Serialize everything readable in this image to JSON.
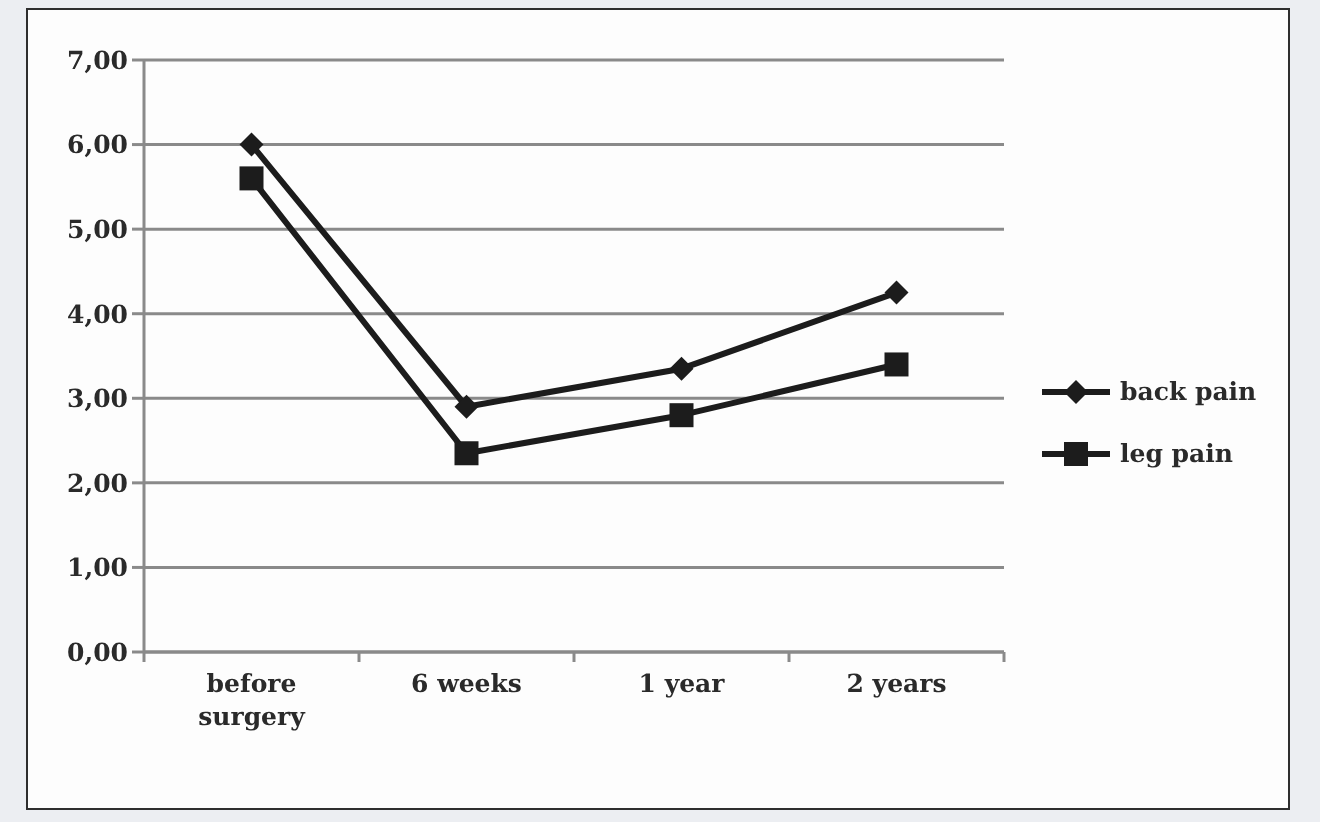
{
  "chart_data": {
    "type": "line",
    "categories": [
      "before surgery",
      "6 weeks",
      "1 year",
      "2 years"
    ],
    "series": [
      {
        "name": "back pain",
        "color": "#1c1c1c",
        "values": [
          6.0,
          2.9,
          3.35,
          4.25
        ],
        "marker": "diamond"
      },
      {
        "name": "leg pain",
        "color": "#1c1c1c",
        "values": [
          5.6,
          2.35,
          2.8,
          3.4
        ],
        "marker": "square"
      }
    ],
    "ylim": [
      0,
      7
    ],
    "yticks": [
      {
        "value": 0,
        "label": "0,00"
      },
      {
        "value": 1,
        "label": "1,00"
      },
      {
        "value": 2,
        "label": "2,00"
      },
      {
        "value": 3,
        "label": "3,00"
      },
      {
        "value": 4,
        "label": "4,00"
      },
      {
        "value": 5,
        "label": "5,00"
      },
      {
        "value": 6,
        "label": "6,00"
      },
      {
        "value": 7,
        "label": "7,00"
      }
    ],
    "grid": "y",
    "legend": "right",
    "line_style": "solid"
  }
}
